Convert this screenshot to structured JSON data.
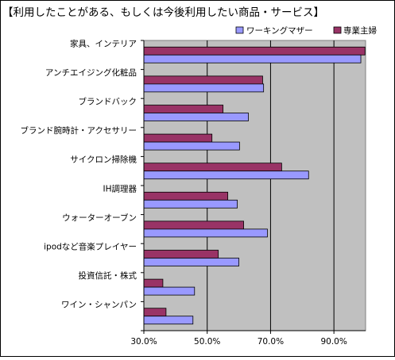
{
  "chart_data": {
    "type": "bar",
    "orientation": "horizontal",
    "title": "【利用したことがある、もしくは今後利用したい商品・サービス】",
    "categories": [
      "家具、インテリア",
      "アンチエイジング化粧品",
      "ブランドバック",
      "ブランド腕時計・アクセサリー",
      "サイクロン掃除機",
      "IH調理器",
      "ウォーターオーブン",
      "ipodなど音楽プレイヤー",
      "投資信託・株式",
      "ワイン・シャンパン"
    ],
    "series": [
      {
        "name": "ワーキングマザー",
        "color": "#9999ff",
        "values": [
          98.5,
          67.8,
          63.0,
          60.2,
          82.0,
          59.5,
          69.0,
          60.0,
          46.0,
          45.5
        ]
      },
      {
        "name": "専業主婦",
        "color": "#993366",
        "values": [
          99.8,
          67.5,
          55.0,
          51.5,
          73.5,
          56.5,
          61.5,
          53.5,
          36.0,
          37.0
        ]
      }
    ],
    "xlim": [
      30,
      100
    ],
    "xticks": [
      "30.0%",
      "50.0%",
      "70.0%",
      "90.0%"
    ],
    "xtick_values": [
      30,
      50,
      70,
      90
    ],
    "grid": true,
    "legend_position": "top-right",
    "plot_background": "#c0c0c0"
  }
}
